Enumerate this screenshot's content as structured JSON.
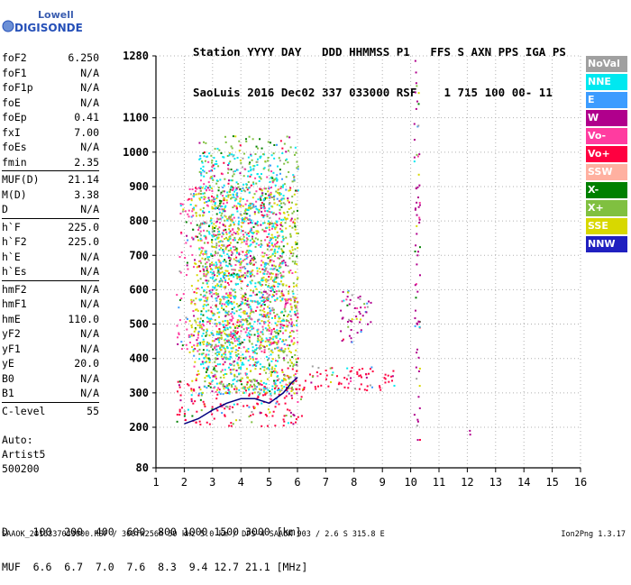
{
  "logo": {
    "line1": "Lowell",
    "line2": "DIGISONDE"
  },
  "header": {
    "labels": "Station YYYY DAY   DDD HHMMSS P1   FFS S AXN PPS IGA PS",
    "values": "SaoLuis 2016 Dec02 337 033000 RSF    1 715 100 00- 11"
  },
  "params": [
    {
      "key": "foF2",
      "value": "6.250"
    },
    {
      "key": "foF1",
      "value": "N/A"
    },
    {
      "key": "foF1p",
      "value": "N/A"
    },
    {
      "key": "foE",
      "value": "N/A"
    },
    {
      "key": "foEp",
      "value": "0.41"
    },
    {
      "key": "fxI",
      "value": "7.00"
    },
    {
      "key": "foEs",
      "value": "N/A"
    },
    {
      "key": "fmin",
      "value": "2.35"
    },
    {
      "sep": true
    },
    {
      "key": "MUF(D)",
      "value": "21.14"
    },
    {
      "key": "M(D)",
      "value": "3.38"
    },
    {
      "key": "D",
      "value": "N/A"
    },
    {
      "sep": true
    },
    {
      "key": "h`F",
      "value": "225.0"
    },
    {
      "key": "h`F2",
      "value": "225.0"
    },
    {
      "key": "h`E",
      "value": "N/A"
    },
    {
      "key": "h`Es",
      "value": "N/A"
    },
    {
      "sep": true
    },
    {
      "key": "hmF2",
      "value": "N/A"
    },
    {
      "key": "hmF1",
      "value": "N/A"
    },
    {
      "key": "hmE",
      "value": "110.0"
    },
    {
      "key": "yF2",
      "value": "N/A"
    },
    {
      "key": "yF1",
      "value": "N/A"
    },
    {
      "key": "yE",
      "value": "20.0"
    },
    {
      "key": "B0",
      "value": "N/A"
    },
    {
      "key": "B1",
      "value": "N/A"
    },
    {
      "sep": true
    },
    {
      "key": "C-level",
      "value": "55"
    }
  ],
  "auto": {
    "line1": "Auto:",
    "line2": "Artist5",
    "line3": "500200"
  },
  "legend": [
    {
      "label": "NoVal",
      "color": "#a0a0a0"
    },
    {
      "label": "NNE",
      "color": "#00e8f0"
    },
    {
      "label": "E",
      "color": "#3c9cff"
    },
    {
      "label": "W",
      "color": "#b0008c"
    },
    {
      "label": "Vo-",
      "color": "#ff3ca0"
    },
    {
      "label": "Vo+",
      "color": "#ff0040"
    },
    {
      "label": "SSW",
      "color": "#ffb0a0"
    },
    {
      "label": "X-",
      "color": "#008000"
    },
    {
      "label": "X+",
      "color": "#80c040"
    },
    {
      "label": "SSE",
      "color": "#d8d800"
    },
    {
      "label": "NNW",
      "color": "#2020c0"
    }
  ],
  "scale": {
    "line1": "D    100  200  400  600  800 1000 1500 3000 [km]",
    "line2": "MUF  6.6  6.7  7.0  7.6  8.3  9.4 12.7 21.1 [MHz]"
  },
  "footer": "SAAOK_2016337033000.RSF / 300fx256h 50 kHz 5.0 km / DPS-4 SAAOK 903 / 2.6 S 315.8 E",
  "version": "Ion2Png 1.3.17",
  "chart_data": {
    "type": "scatter",
    "xlim": [
      1,
      16
    ],
    "ylim": [
      80,
      1280
    ],
    "x_ticks": [
      1,
      2,
      3,
      4,
      5,
      6,
      7,
      8,
      9,
      10,
      11,
      12,
      13,
      14,
      15,
      16
    ],
    "y_ticks": [
      80,
      200,
      300,
      400,
      500,
      600,
      700,
      800,
      900,
      1000,
      1100,
      1280
    ],
    "grid": true,
    "trace": {
      "color": "#000080",
      "x": [
        2.0,
        2.5,
        3.0,
        3.5,
        4.0,
        4.5,
        5.0,
        5.5,
        5.8,
        6.0
      ],
      "y": [
        210,
        225,
        250,
        270,
        283,
        283,
        270,
        300,
        330,
        345
      ]
    },
    "clusters": [
      {
        "series": "Vo+",
        "x": [
          1.7,
          6.2
        ],
        "y": [
          205,
          340
        ]
      },
      {
        "series": "Vo+",
        "x": [
          5.5,
          9.5
        ],
        "y": [
          310,
          380
        ]
      },
      {
        "series": "Vo-",
        "x": [
          1.7,
          6.0
        ],
        "y": [
          420,
          600
        ]
      },
      {
        "series": "Vo-",
        "x": [
          1.8,
          5.5
        ],
        "y": [
          640,
          900
        ]
      },
      {
        "series": "X+",
        "x": [
          2.5,
          6.0
        ],
        "y": [
          300,
          1050
        ]
      },
      {
        "series": "SSE",
        "x": [
          2.2,
          6.0
        ],
        "y": [
          300,
          900
        ]
      },
      {
        "series": "NNE",
        "x": [
          2.5,
          5.5
        ],
        "y": [
          300,
          1000
        ]
      },
      {
        "series": "W",
        "x": [
          7.5,
          8.6
        ],
        "y": [
          450,
          600
        ]
      },
      {
        "series": "W",
        "x": [
          10.1,
          10.3
        ],
        "y": [
          160,
          1270
        ]
      },
      {
        "series": "W",
        "x": [
          12.0,
          12.1
        ],
        "y": [
          180,
          230
        ]
      }
    ]
  }
}
